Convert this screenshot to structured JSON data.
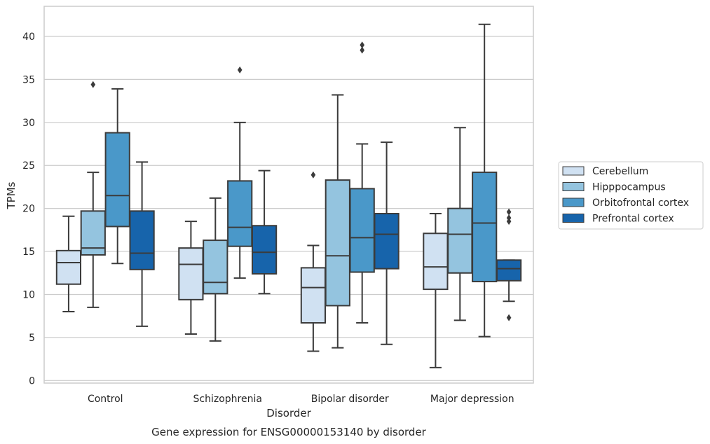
{
  "chart_data": {
    "type": "box",
    "caption": "Gene expression for ENSG00000153140 by disorder",
    "xlabel": "Disorder",
    "ylabel": "TPMs",
    "ylim": [
      -0.3,
      43.5
    ],
    "yticks": [
      0,
      5,
      10,
      15,
      20,
      25,
      30,
      35,
      40
    ],
    "grid": true,
    "legend_placement": "right",
    "categories": [
      "Control",
      "Schizophrenia",
      "Bipolar disorder",
      "Major depression"
    ],
    "series": [
      {
        "name": "Cerebellum",
        "color": "#d0e1f2",
        "boxes": [
          {
            "whislo": 8.0,
            "q1": 11.2,
            "med": 13.7,
            "q3": 15.1,
            "whishi": 19.1,
            "fliers": []
          },
          {
            "whislo": 5.4,
            "q1": 9.4,
            "med": 13.5,
            "q3": 15.4,
            "whishi": 18.5,
            "fliers": []
          },
          {
            "whislo": 3.4,
            "q1": 6.7,
            "med": 10.8,
            "q3": 13.1,
            "whishi": 15.7,
            "fliers": [
              23.9
            ]
          },
          {
            "whislo": 1.5,
            "q1": 10.6,
            "med": 13.2,
            "q3": 17.1,
            "whishi": 19.4,
            "fliers": []
          }
        ]
      },
      {
        "name": "Hipppocampus",
        "color": "#94c4df",
        "boxes": [
          {
            "whislo": 8.5,
            "q1": 14.6,
            "med": 15.4,
            "q3": 19.7,
            "whishi": 24.2,
            "fliers": [
              34.4
            ]
          },
          {
            "whislo": 4.6,
            "q1": 10.1,
            "med": 11.4,
            "q3": 16.3,
            "whishi": 21.2,
            "fliers": []
          },
          {
            "whislo": 3.8,
            "q1": 8.7,
            "med": 14.5,
            "q3": 23.3,
            "whishi": 33.2,
            "fliers": []
          },
          {
            "whislo": 7.0,
            "q1": 12.5,
            "med": 17.0,
            "q3": 20.0,
            "whishi": 29.4,
            "fliers": []
          }
        ]
      },
      {
        "name": "Orbitofrontal cortex",
        "color": "#4a98c9",
        "boxes": [
          {
            "whislo": 13.6,
            "q1": 17.9,
            "med": 21.5,
            "q3": 28.8,
            "whishi": 33.9,
            "fliers": []
          },
          {
            "whislo": 11.9,
            "q1": 15.6,
            "med": 17.8,
            "q3": 23.2,
            "whishi": 30.0,
            "fliers": [
              36.1
            ]
          },
          {
            "whislo": 6.7,
            "q1": 12.6,
            "med": 16.6,
            "q3": 22.3,
            "whishi": 27.5,
            "fliers": [
              38.4,
              39.0
            ]
          },
          {
            "whislo": 5.1,
            "q1": 11.5,
            "med": 18.3,
            "q3": 24.2,
            "whishi": 41.4,
            "fliers": []
          }
        ]
      },
      {
        "name": "Prefrontal cortex",
        "color": "#1764ab",
        "boxes": [
          {
            "whislo": 6.3,
            "q1": 12.9,
            "med": 14.8,
            "q3": 19.7,
            "whishi": 25.4,
            "fliers": []
          },
          {
            "whislo": 10.1,
            "q1": 12.4,
            "med": 14.9,
            "q3": 18.0,
            "whishi": 24.4,
            "fliers": []
          },
          {
            "whislo": 4.2,
            "q1": 13.0,
            "med": 17.0,
            "q3": 19.4,
            "whishi": 27.7,
            "fliers": []
          },
          {
            "whislo": 9.2,
            "q1": 11.6,
            "med": 13.0,
            "q3": 14.0,
            "whishi": 14.0,
            "fliers": [
              19.6,
              18.9,
              18.5,
              7.3
            ]
          }
        ]
      }
    ]
  }
}
